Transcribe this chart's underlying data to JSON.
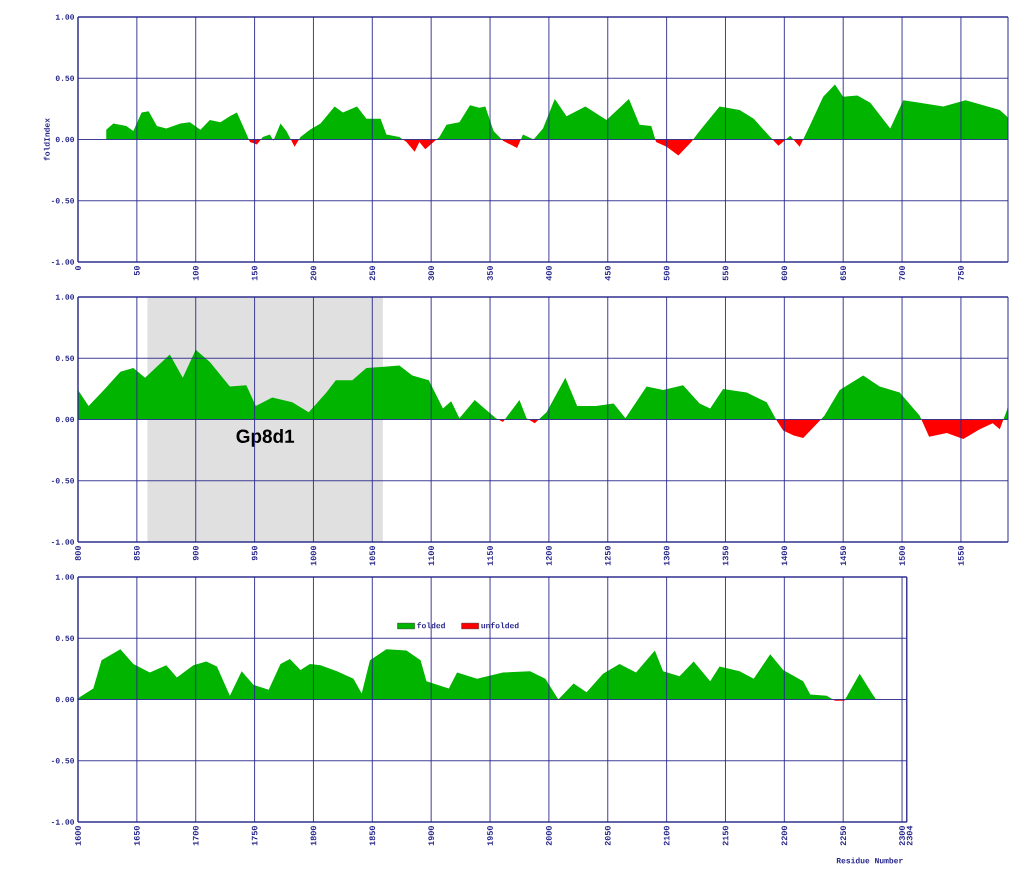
{
  "chart_data": [
    {
      "type": "area",
      "ylabel": "foldIndex",
      "xlim": [
        0,
        790
      ],
      "ylim": [
        -1,
        1
      ],
      "grid": true,
      "xticks": [
        0,
        50,
        100,
        150,
        200,
        250,
        300,
        350,
        400,
        450,
        500,
        550,
        600,
        650,
        700,
        750
      ],
      "yticks": [
        {
          "value": -1,
          "label": "-1.00"
        },
        {
          "value": -0.5,
          "label": "-0.50"
        },
        {
          "value": 0,
          "label": "0.00"
        },
        {
          "value": 0.5,
          "label": "0.50"
        },
        {
          "value": 1,
          "label": "1.00"
        }
      ],
      "x": [
        24,
        30,
        41,
        47,
        54,
        60,
        67,
        75,
        87,
        95,
        104,
        112,
        121,
        129,
        135,
        142,
        146,
        152,
        157,
        163,
        166,
        172,
        177,
        184,
        189,
        197,
        206,
        218,
        225,
        237,
        245,
        257,
        262,
        273,
        279,
        286,
        290,
        295,
        302,
        307,
        313,
        324,
        333,
        341,
        346,
        353,
        361,
        373,
        378,
        387,
        395,
        405,
        415,
        431,
        449,
        468,
        477,
        487,
        491,
        500,
        510,
        521,
        528,
        545,
        562,
        574,
        588,
        595,
        605,
        613,
        622,
        633,
        643,
        650,
        662,
        673,
        690,
        701,
        715,
        735,
        754,
        769,
        783,
        790
      ],
      "series": [
        {
          "color": "#00b400",
          "values": [
            0.08,
            0.13,
            0.11,
            0.07,
            0.22,
            0.23,
            0.11,
            0.09,
            0.13,
            0.14,
            0.08,
            0.16,
            0.14,
            0.19,
            0.22,
            0.07,
            null,
            null,
            0.02,
            0.04,
            null,
            0.13,
            0.07,
            null,
            0.02,
            0.08,
            0.13,
            0.27,
            0.22,
            0.27,
            0.17,
            0.17,
            0.04,
            0.02,
            null,
            null,
            null,
            null,
            null,
            0.02,
            0.12,
            0.14,
            0.28,
            0.26,
            0.27,
            0.07,
            null,
            null,
            0.04,
            0,
            0.09,
            0.33,
            0.19,
            0.27,
            0.16,
            0.33,
            0.12,
            0.11,
            null,
            null,
            null,
            null,
            0.07,
            0.27,
            0.24,
            0.17,
            0.02,
            null,
            0.03,
            null,
            0.12,
            0.35,
            0.45,
            0.35,
            0.36,
            0.3,
            0.09,
            0.32,
            0.3,
            0.27,
            0.32,
            0.28,
            0.24,
            0.18
          ]
        },
        {
          "color": "#ff0000",
          "values": [
            null,
            null,
            null,
            null,
            null,
            null,
            null,
            null,
            null,
            null,
            null,
            null,
            null,
            null,
            null,
            null,
            -0.02,
            -0.04,
            null,
            null,
            -0.01,
            null,
            null,
            -0.06,
            null,
            null,
            null,
            null,
            null,
            null,
            null,
            null,
            null,
            null,
            -0.02,
            -0.1,
            -0.02,
            -0.08,
            -0.02,
            null,
            null,
            null,
            null,
            null,
            null,
            null,
            -0.01,
            -0.07,
            null,
            null,
            null,
            null,
            null,
            null,
            null,
            null,
            null,
            null,
            -0.02,
            -0.06,
            -0.13,
            -0.02,
            null,
            null,
            null,
            null,
            null,
            -0.05,
            null,
            -0.06,
            null,
            null,
            null,
            null,
            null,
            null,
            null,
            null,
            null,
            null,
            null,
            null,
            null,
            null
          ]
        }
      ]
    },
    {
      "type": "area",
      "xlim": [
        800,
        1590
      ],
      "ylim": [
        -1,
        1
      ],
      "grid": true,
      "xticks": [
        800,
        850,
        900,
        950,
        1000,
        1050,
        1100,
        1150,
        1200,
        1250,
        1300,
        1350,
        1400,
        1450,
        1500,
        1550
      ],
      "yticks": [
        {
          "value": -1,
          "label": "-1.00"
        },
        {
          "value": -0.5,
          "label": "-0.50"
        },
        {
          "value": 0,
          "label": "0.00"
        },
        {
          "value": 0.5,
          "label": "0.50"
        },
        {
          "value": 1,
          "label": "1.00"
        }
      ],
      "bands": [
        {
          "axis": "x",
          "from": 859,
          "to": 1059,
          "label": "Gp8d1",
          "color": "#e0e0e0"
        }
      ],
      "x": [
        800,
        809,
        822,
        836,
        847,
        857,
        878,
        889,
        900,
        912,
        929,
        943,
        951,
        965,
        982,
        996,
        1011,
        1019,
        1033,
        1045,
        1060,
        1073,
        1084,
        1098,
        1110,
        1117,
        1124,
        1137,
        1149,
        1155,
        1161,
        1175,
        1181,
        1188,
        1198,
        1214,
        1224,
        1240,
        1255,
        1265,
        1283,
        1297,
        1314,
        1328,
        1337,
        1348,
        1368,
        1385,
        1393,
        1399,
        1408,
        1416,
        1427,
        1434,
        1447,
        1467,
        1481,
        1498,
        1515,
        1523,
        1538,
        1552,
        1566,
        1577,
        1583,
        1590
      ],
      "series": [
        {
          "color": "#00b400",
          "values": [
            0.24,
            0.11,
            0.24,
            0.39,
            0.42,
            0.34,
            0.53,
            0.34,
            0.57,
            0.47,
            0.27,
            0.28,
            0.11,
            0.18,
            0.14,
            0.06,
            0.22,
            0.32,
            0.32,
            0.42,
            0.43,
            0.44,
            0.36,
            0.32,
            0.09,
            0.15,
            0.01,
            0.16,
            0.06,
            0.01,
            null,
            0.16,
            0.01,
            null,
            0.06,
            0.34,
            0.11,
            0.11,
            0.13,
            0.01,
            0.27,
            0.24,
            0.28,
            0.13,
            0.09,
            0.25,
            0.22,
            0.14,
            0,
            null,
            null,
            null,
            null,
            0.03,
            0.24,
            0.36,
            0.27,
            0.22,
            0.03,
            null,
            null,
            null,
            null,
            null,
            null,
            0.1
          ]
        },
        {
          "color": "#ff0000",
          "values": [
            null,
            null,
            null,
            null,
            null,
            null,
            null,
            null,
            null,
            null,
            null,
            null,
            null,
            null,
            null,
            null,
            null,
            null,
            null,
            null,
            null,
            null,
            null,
            null,
            null,
            null,
            null,
            null,
            null,
            null,
            -0.02,
            null,
            null,
            -0.03,
            null,
            null,
            null,
            null,
            null,
            null,
            null,
            null,
            null,
            null,
            null,
            null,
            null,
            null,
            null,
            -0.09,
            -0.13,
            -0.15,
            -0.04,
            null,
            null,
            null,
            null,
            null,
            null,
            -0.14,
            -0.11,
            -0.16,
            -0.08,
            -0.03,
            -0.08,
            null
          ]
        }
      ]
    },
    {
      "type": "area",
      "xlabel": "Residue Number",
      "xlim": [
        1600,
        2304
      ],
      "ylim": [
        -1,
        1
      ],
      "grid": true,
      "legend": "top",
      "xticks": [
        1600,
        1650,
        1700,
        1750,
        1800,
        1850,
        1900,
        1950,
        2000,
        2050,
        2100,
        2150,
        2200,
        2250,
        2300,
        2304
      ],
      "yticks": [
        {
          "value": -1,
          "label": "-1.00"
        },
        {
          "value": -0.5,
          "label": "-0.50"
        },
        {
          "value": 0,
          "label": "0.00"
        },
        {
          "value": 0.5,
          "label": "0.50"
        },
        {
          "value": 1,
          "label": "1.00"
        }
      ],
      "x": [
        1600,
        1613,
        1620,
        1636,
        1647,
        1661,
        1675,
        1684,
        1698,
        1709,
        1718,
        1729,
        1739,
        1749,
        1762,
        1772,
        1780,
        1789,
        1797,
        1806,
        1820,
        1834,
        1841,
        1848,
        1862,
        1879,
        1891,
        1896,
        1915,
        1922,
        1939,
        1961,
        1984,
        1997,
        2008,
        2021,
        2032,
        2046,
        2060,
        2074,
        2090,
        2097,
        2111,
        2123,
        2137,
        2145,
        2162,
        2174,
        2188,
        2199,
        2216,
        2222,
        2236,
        2243,
        2251,
        2264,
        2275,
        2278
      ],
      "series": [
        {
          "name": "folded",
          "color": "#00b400",
          "values": [
            0.01,
            0.09,
            0.32,
            0.41,
            0.29,
            0.22,
            0.28,
            0.18,
            0.28,
            0.31,
            0.27,
            0.03,
            0.23,
            0.12,
            0.08,
            0.29,
            0.33,
            0.24,
            0.29,
            0.28,
            0.23,
            0.17,
            0.05,
            0.32,
            0.41,
            0.4,
            0.32,
            0.15,
            0.09,
            0.22,
            0.17,
            0.22,
            0.23,
            0.17,
            0,
            0.13,
            0.06,
            0.21,
            0.29,
            0.22,
            0.4,
            0.23,
            0.19,
            0.31,
            0.15,
            0.27,
            0.23,
            0.17,
            0.37,
            0.24,
            0.15,
            0.04,
            0.03,
            null,
            null,
            0.21,
            0.04,
            0
          ]
        },
        {
          "name": "unfolded",
          "color": "#ff0000",
          "values": [
            null,
            null,
            null,
            null,
            null,
            null,
            null,
            null,
            null,
            null,
            null,
            null,
            null,
            null,
            null,
            null,
            null,
            null,
            null,
            null,
            null,
            null,
            null,
            null,
            null,
            null,
            null,
            null,
            null,
            null,
            null,
            null,
            null,
            null,
            null,
            null,
            null,
            null,
            null,
            null,
            null,
            null,
            null,
            null,
            null,
            null,
            null,
            null,
            null,
            null,
            null,
            null,
            null,
            -0.01,
            -0.01,
            null,
            null,
            null
          ]
        }
      ]
    }
  ]
}
